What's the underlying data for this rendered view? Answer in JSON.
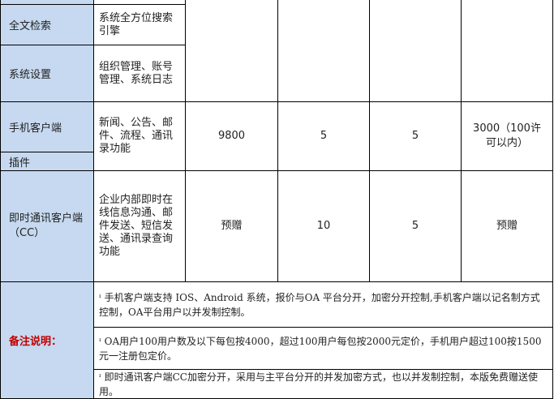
{
  "rows": [
    {
      "name": "全文检索",
      "desc": "系统全方位搜索引擎"
    },
    {
      "name": "系统设置",
      "desc": "组织管理、账号管理、系统日志"
    },
    {
      "name": "手机客户端",
      "sub": "插件",
      "desc": "新闻、公告、邮件、流程、通讯录功能",
      "c3": "9800",
      "c4": "5",
      "c5": "5",
      "c6": "3000（100许可以内）"
    },
    {
      "name": "即时通讯客户端（CC）",
      "desc": "企业内部即时在线信息沟通、邮件发送、短信发送、通讯录查询功能",
      "c3": "预赠",
      "c4": "10",
      "c5": "5",
      "c6": "预赠"
    }
  ],
  "notes": {
    "label": "备注说明：",
    "items": [
      "ᶦ 手机客户端支持 IOS、Android 系统，报价与OA 平台分开，加密分开控制,手机客户端以记名制方式控制，OA平台用户以并发制控制。",
      "ᶦ OA用户100用户数及以下每包按4000，超过100用户每包按2000元定价，手机用户超过100按1500元一注册包定价。",
      "ᶦ 即时通讯客户端CC加密分开，采用与主平台分开的并发加密方式，也以并发制控制，本版免费赠送使用。"
    ]
  },
  "colors": {
    "header_bg": "#c6d9f0",
    "note_label": "#c00000"
  }
}
